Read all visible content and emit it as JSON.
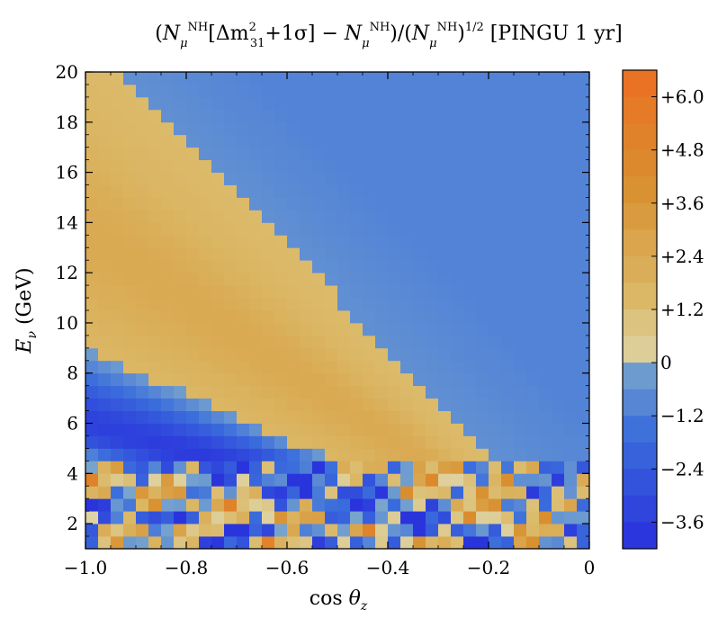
{
  "chart_data": {
    "type": "heatmap",
    "title": "(N_μ^NH[Δm²₃₁+1σ] − N_μ^NH)/(N_μ^NH)^1/2 [PINGU 1 yr]",
    "title_parts": {
      "open": "(",
      "n1": "N",
      "mu1": "μ",
      "nh1": "NH",
      "bracket_open": "[",
      "dm": "Δm",
      "sq": "2",
      "sub31": "31",
      "plus_sigma": "+1σ]",
      "minus": " − ",
      "n2": "N",
      "mu2": "μ",
      "nh2": "NH",
      "mid": ")/(",
      "n3": "N",
      "mu3": "μ",
      "nh3": "NH",
      "close": ")",
      "half": "1/2",
      "tail": " [PINGU 1 yr]"
    },
    "xlabel": "cos θ_z",
    "xlabel_parts": {
      "main": "cos ",
      "theta": "θ",
      "sub": "z"
    },
    "ylabel": "E_ν (GeV)",
    "ylabel_parts": {
      "main": "E",
      "sub": "ν",
      "unit": " (GeV)"
    },
    "xlim": [
      -1.0,
      0.0
    ],
    "ylim": [
      1.0,
      20.0
    ],
    "x_ticks": [
      -1.0,
      -0.8,
      -0.6,
      -0.4,
      -0.2,
      0.0
    ],
    "x_tick_labels": [
      "−1.0",
      "−0.8",
      "−0.6",
      "−0.4",
      "−0.2",
      "0"
    ],
    "y_ticks": [
      2,
      4,
      6,
      8,
      10,
      12,
      14,
      16,
      18,
      20
    ],
    "y_tick_labels": [
      "2",
      "4",
      "6",
      "8",
      "10",
      "12",
      "14",
      "16",
      "18",
      "20"
    ],
    "colorbar": {
      "range": [
        -4.2,
        6.6
      ],
      "tick_values": [
        6.0,
        4.8,
        3.6,
        2.4,
        1.2,
        0.0,
        -1.2,
        -2.4,
        -3.6
      ],
      "tick_labels": [
        "+6.0",
        "+4.8",
        "+3.6",
        "+2.4",
        "+1.2",
        "0",
        "−1.2",
        "−2.4",
        "−3.6"
      ]
    },
    "grid": {
      "x_bins": 40,
      "y_bins": 38
    }
  },
  "colors": {
    "positive_low": "#ded4a6",
    "positive_mid": "#dbb866",
    "positive_high": "#d89030",
    "positive_max": "#ec6e22",
    "negative_low": "#7aa6cc",
    "negative_mid": "#3b6edc",
    "negative_max": "#2a34dc"
  }
}
